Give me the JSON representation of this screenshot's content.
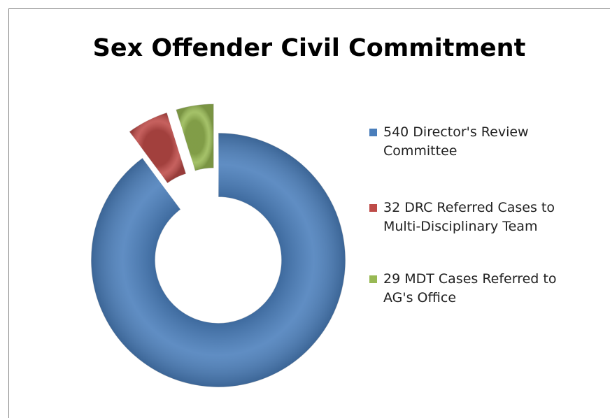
{
  "chart_data": {
    "type": "doughnut",
    "title": "Sex Offender Civil Commitment",
    "categories": [
      "540 Director's Review Committee",
      "32 DRC Referred  Cases to Multi-Disciplinary Team",
      "29 MDT Cases  Referred to AG's Office"
    ],
    "values": [
      540,
      32,
      29
    ],
    "colors": [
      "#4a7ebb",
      "#be4b48",
      "#98b954"
    ],
    "legend": "right"
  }
}
